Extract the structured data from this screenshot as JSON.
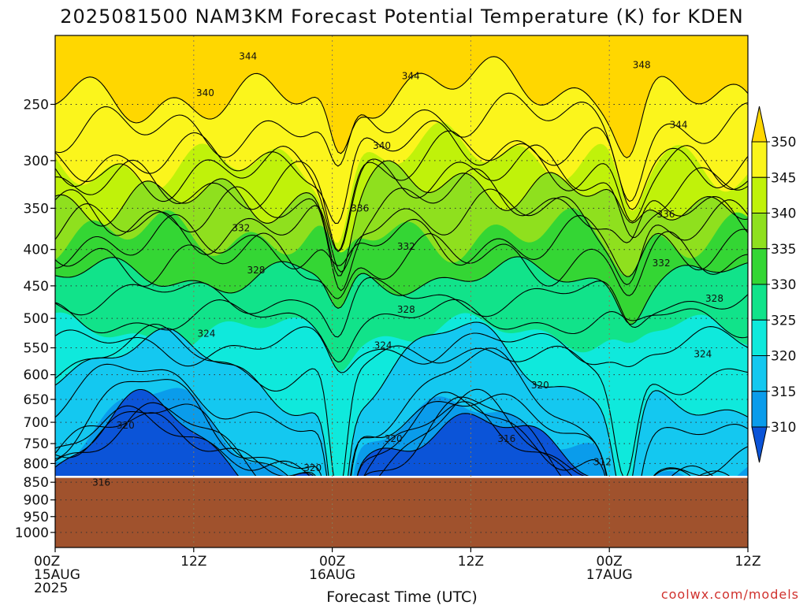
{
  "chart_data": {
    "type": "heatmap",
    "title": "2025081500 NAM3KM Forecast Potential Temperature (K) for KDEN",
    "xlabel": "Forecast Time (UTC)",
    "ylabel": "",
    "x_ticks": [
      {
        "hour": 0,
        "lines": [
          "00Z",
          "15AUG",
          "2025"
        ]
      },
      {
        "hour": 12,
        "lines": [
          "12Z"
        ]
      },
      {
        "hour": 24,
        "lines": [
          "00Z",
          "16AUG"
        ]
      },
      {
        "hour": 36,
        "lines": [
          "12Z"
        ]
      },
      {
        "hour": 48,
        "lines": [
          "00Z",
          "17AUG"
        ]
      },
      {
        "hour": 60,
        "lines": [
          "12Z"
        ]
      }
    ],
    "xlim": [
      0,
      60
    ],
    "y_ticks": [
      250,
      300,
      350,
      400,
      450,
      500,
      550,
      600,
      650,
      700,
      750,
      800,
      850,
      900,
      950,
      1000
    ],
    "ylim": [
      200,
      1050
    ],
    "y_scale": "log-pressure",
    "ground_pressure": 838,
    "grid": true,
    "colorbar": {
      "ticks": [
        350,
        345,
        340,
        335,
        330,
        325,
        320,
        315,
        310
      ],
      "colors": [
        "#ffd700",
        "#fbf51c",
        "#c0f20a",
        "#8fe01e",
        "#34d634",
        "#11e38a",
        "#0fe9dc",
        "#14c8f0",
        "#0a9ceb",
        "#0b54d8"
      ],
      "extend": "both"
    },
    "bands": [
      {
        "theta": 310,
        "color": "#0b54d8"
      },
      {
        "theta": 315,
        "color": "#0a9ceb"
      },
      {
        "theta": 320,
        "color": "#14c8f0"
      },
      {
        "theta": 325,
        "color": "#0fe9dc"
      },
      {
        "theta": 330,
        "color": "#11e38a"
      },
      {
        "theta": 335,
        "color": "#34d634"
      },
      {
        "theta": 340,
        "color": "#8fe01e"
      },
      {
        "theta": 345,
        "color": "#c0f20a"
      },
      {
        "theta": 350,
        "color": "#fbf51c"
      }
    ],
    "contour_labels": [
      {
        "text": "344",
        "hour": 16.7,
        "p": 214
      },
      {
        "text": "348",
        "hour": 50.8,
        "p": 220
      },
      {
        "text": "344",
        "hour": 30.8,
        "p": 228
      },
      {
        "text": "340",
        "hour": 13.0,
        "p": 241
      },
      {
        "text": "344",
        "hour": 54.0,
        "p": 267
      },
      {
        "text": "340",
        "hour": 28.3,
        "p": 286
      },
      {
        "text": "336",
        "hour": 26.4,
        "p": 350
      },
      {
        "text": "336",
        "hour": 52.9,
        "p": 357
      },
      {
        "text": "332",
        "hour": 16.1,
        "p": 373
      },
      {
        "text": "332",
        "hour": 30.4,
        "p": 396
      },
      {
        "text": "332",
        "hour": 52.5,
        "p": 418
      },
      {
        "text": "328",
        "hour": 17.4,
        "p": 428
      },
      {
        "text": "328",
        "hour": 30.4,
        "p": 486
      },
      {
        "text": "328",
        "hour": 57.1,
        "p": 469
      },
      {
        "text": "324",
        "hour": 13.1,
        "p": 525
      },
      {
        "text": "324",
        "hour": 28.4,
        "p": 546
      },
      {
        "text": "324",
        "hour": 56.1,
        "p": 561
      },
      {
        "text": "320",
        "hour": 42.0,
        "p": 621
      },
      {
        "text": "320",
        "hour": 6.1,
        "p": 707
      },
      {
        "text": "320",
        "hour": 29.3,
        "p": 738
      },
      {
        "text": "316",
        "hour": 39.1,
        "p": 738
      },
      {
        "text": "320",
        "hour": 22.3,
        "p": 811
      },
      {
        "text": "312",
        "hour": 47.4,
        "p": 796
      },
      {
        "text": "316",
        "hour": 4.0,
        "p": 851
      }
    ],
    "credit": "coolwx.com/models"
  }
}
